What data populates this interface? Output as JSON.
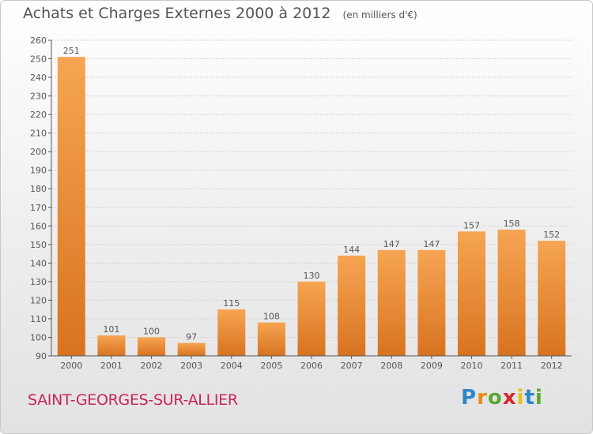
{
  "title": "Achats et Charges Externes 2000 à 2012",
  "subtitle": "(en milliers d'€)",
  "city": "SAINT-GEORGES-SUR-ALLIER",
  "logo": {
    "letters": [
      "P",
      "r",
      "o",
      "x",
      "i",
      "t",
      "i"
    ],
    "colors": [
      "#2f86c8",
      "#e88a1a",
      "#59a832",
      "#d8242b",
      "#e8c21a",
      "#2f86c8",
      "#59a832"
    ]
  },
  "colors": {
    "bar_light": "#f6a552",
    "bar_dark": "#d8731f",
    "text": "#555555",
    "city": "#c8245c"
  },
  "chart_data": {
    "type": "bar",
    "title": "Achats et Charges Externes 2000 à 2012",
    "subtitle": "(en milliers d'€)",
    "categories": [
      "2000",
      "2001",
      "2002",
      "2003",
      "2004",
      "2005",
      "2006",
      "2007",
      "2008",
      "2009",
      "2010",
      "2011",
      "2012"
    ],
    "values": [
      251,
      101,
      100,
      97,
      115,
      108,
      130,
      144,
      147,
      147,
      157,
      158,
      152
    ],
    "data_labels": [
      "251",
      "101",
      "100",
      "97",
      "115",
      "108",
      "130",
      "144",
      "147",
      "147",
      "157",
      "158",
      "152"
    ],
    "ylim": [
      90,
      260
    ],
    "yticks": [
      90,
      100,
      110,
      120,
      130,
      140,
      150,
      160,
      170,
      180,
      190,
      200,
      210,
      220,
      230,
      240,
      250,
      260
    ],
    "ytick_labels": [
      "90",
      "100",
      "110",
      "120",
      "130",
      "140",
      "150",
      "160",
      "170",
      "180",
      "190",
      "200",
      "210",
      "220",
      "230",
      "240",
      "250",
      "260"
    ],
    "grid": true,
    "legend": "none"
  }
}
